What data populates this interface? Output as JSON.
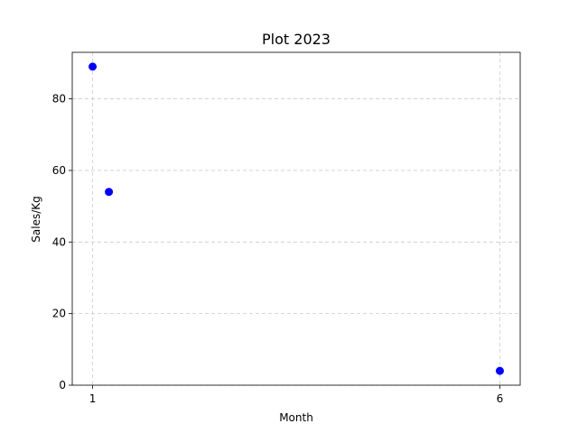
{
  "chart_data": {
    "type": "scatter",
    "title": "Plot 2023",
    "xlabel": "Month",
    "ylabel": "Sales/Kg",
    "x": [
      1,
      1.2,
      6
    ],
    "y": [
      89,
      54,
      4
    ],
    "xlim": [
      0.75,
      6.25
    ],
    "ylim": [
      0,
      93
    ],
    "xticks": [
      1,
      6
    ],
    "yticks": [
      0,
      20,
      40,
      60,
      80
    ],
    "grid": true,
    "marker_color": "#0000ff"
  }
}
